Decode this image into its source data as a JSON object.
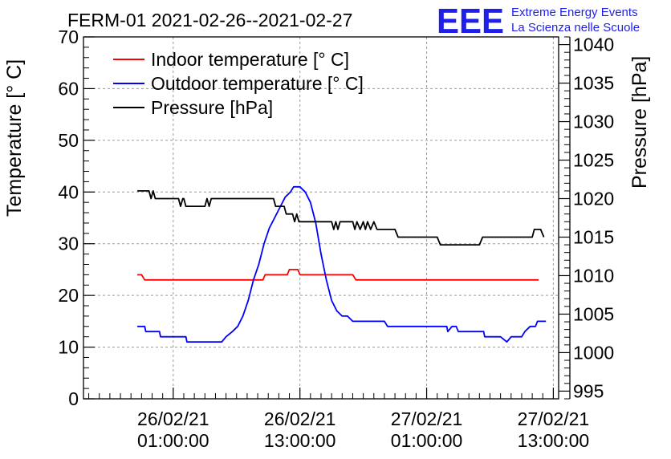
{
  "chart_data": {
    "type": "line",
    "title": "FERM-01 2021-02-26--2021-02-27",
    "ylabel": "Temperature [° C]",
    "ylabel_right": "Pressure [hPa]",
    "xlabel": "",
    "ylim": [
      0,
      70
    ],
    "ylim_right": [
      994,
      1041
    ],
    "xlim_hours": [
      -7.5,
      37.5
    ],
    "grid": true,
    "legend_position": "top-left",
    "logo": {
      "mark": "EEE",
      "line1": "Extreme Energy Events",
      "line2": "La Scienza nelle Scuole",
      "color": "#1f1fe8"
    },
    "x_ticks": [
      {
        "hour": 1,
        "date": "26/02/21",
        "time": "01:00:00"
      },
      {
        "hour": 13,
        "date": "26/02/21",
        "time": "13:00:00"
      },
      {
        "hour": 25,
        "date": "27/02/21",
        "time": "01:00:00"
      },
      {
        "hour": 37,
        "date": "27/02/21",
        "time": "13:00:00"
      }
    ],
    "y_ticks": [
      0,
      10,
      20,
      30,
      40,
      50,
      60,
      70
    ],
    "y_ticks_right": [
      995,
      1000,
      1005,
      1010,
      1015,
      1020,
      1025,
      1030,
      1035,
      1040
    ],
    "series": [
      {
        "name": "Indoor temperature [° C]",
        "axis": "left",
        "color": "#ff0000",
        "points": [
          [
            -2.4,
            24
          ],
          [
            -2,
            24
          ],
          [
            -1.7,
            23
          ],
          [
            0,
            23
          ],
          [
            2,
            23
          ],
          [
            4,
            23
          ],
          [
            6,
            23
          ],
          [
            8,
            23
          ],
          [
            9.5,
            23
          ],
          [
            9.7,
            24
          ],
          [
            11,
            24
          ],
          [
            11.8,
            24
          ],
          [
            12,
            25
          ],
          [
            12.8,
            25
          ],
          [
            13,
            24
          ],
          [
            14,
            24
          ],
          [
            16,
            24
          ],
          [
            17,
            24
          ],
          [
            18,
            24
          ],
          [
            18.3,
            23
          ],
          [
            20,
            23
          ],
          [
            24,
            23
          ],
          [
            28,
            23
          ],
          [
            32,
            23
          ],
          [
            34,
            23
          ],
          [
            35.6,
            23
          ]
        ]
      },
      {
        "name": "Outdoor temperature [° C]",
        "axis": "left",
        "color": "#0000ff",
        "points": [
          [
            -2.4,
            14
          ],
          [
            -1.7,
            14
          ],
          [
            -1.6,
            13
          ],
          [
            -0.3,
            13
          ],
          [
            -0.2,
            12
          ],
          [
            2.2,
            12
          ],
          [
            2.3,
            11
          ],
          [
            5,
            11
          ],
          [
            5.6,
            11
          ],
          [
            6,
            12
          ],
          [
            6.6,
            13
          ],
          [
            7.1,
            14
          ],
          [
            7.6,
            16
          ],
          [
            8.1,
            19
          ],
          [
            8.6,
            23
          ],
          [
            9.1,
            26
          ],
          [
            9.6,
            30
          ],
          [
            10.1,
            33
          ],
          [
            10.6,
            35
          ],
          [
            11.1,
            37
          ],
          [
            11.6,
            39
          ],
          [
            12.1,
            40
          ],
          [
            12.4,
            41
          ],
          [
            13,
            41
          ],
          [
            13.5,
            40
          ],
          [
            14,
            38
          ],
          [
            14.5,
            34
          ],
          [
            15,
            28
          ],
          [
            15.5,
            23
          ],
          [
            16,
            19
          ],
          [
            16.5,
            17
          ],
          [
            17,
            16
          ],
          [
            17.5,
            16
          ],
          [
            18,
            15
          ],
          [
            19,
            15
          ],
          [
            20,
            15
          ],
          [
            21,
            15
          ],
          [
            21.3,
            14
          ],
          [
            23,
            14
          ],
          [
            25,
            14
          ],
          [
            26.9,
            14
          ],
          [
            27,
            13
          ],
          [
            27.4,
            14
          ],
          [
            27.8,
            14
          ],
          [
            28,
            13
          ],
          [
            29,
            13
          ],
          [
            30.4,
            13
          ],
          [
            30.5,
            12
          ],
          [
            32,
            12
          ],
          [
            32.6,
            11
          ],
          [
            33,
            12
          ],
          [
            34,
            12
          ],
          [
            34.3,
            13
          ],
          [
            34.8,
            14
          ],
          [
            35.3,
            14
          ],
          [
            35.5,
            15
          ],
          [
            36.3,
            15
          ]
        ]
      },
      {
        "name": "Pressure [hPa]",
        "axis": "right",
        "color": "#000000",
        "points": [
          [
            -2.4,
            1021
          ],
          [
            -1.3,
            1021
          ],
          [
            -1.1,
            1020
          ],
          [
            -0.9,
            1021
          ],
          [
            -0.7,
            1020
          ],
          [
            0,
            1020
          ],
          [
            1,
            1020
          ],
          [
            1.5,
            1020
          ],
          [
            1.7,
            1019
          ],
          [
            1.9,
            1020
          ],
          [
            2,
            1020
          ],
          [
            2.2,
            1019
          ],
          [
            4,
            1019
          ],
          [
            4.2,
            1020
          ],
          [
            4.4,
            1019
          ],
          [
            4.6,
            1020
          ],
          [
            6,
            1020
          ],
          [
            8,
            1020
          ],
          [
            10.5,
            1020
          ],
          [
            10.7,
            1019
          ],
          [
            11.5,
            1019
          ],
          [
            11.7,
            1018
          ],
          [
            12.3,
            1018
          ],
          [
            12.5,
            1017
          ],
          [
            12.7,
            1018
          ],
          [
            12.9,
            1017
          ],
          [
            13.5,
            1017
          ],
          [
            16,
            1017
          ],
          [
            16.2,
            1016
          ],
          [
            16.4,
            1017
          ],
          [
            16.6,
            1016
          ],
          [
            16.8,
            1017
          ],
          [
            18,
            1017
          ],
          [
            18.2,
            1016
          ],
          [
            18.4,
            1017
          ],
          [
            18.7,
            1016
          ],
          [
            19,
            1017
          ],
          [
            19.2,
            1016
          ],
          [
            19.4,
            1017
          ],
          [
            19.7,
            1016
          ],
          [
            20,
            1017
          ],
          [
            20.3,
            1016
          ],
          [
            22,
            1016
          ],
          [
            22.3,
            1015
          ],
          [
            25,
            1015
          ],
          [
            26,
            1015
          ],
          [
            26.3,
            1014
          ],
          [
            29,
            1014
          ],
          [
            30,
            1014
          ],
          [
            30.3,
            1015
          ],
          [
            34,
            1015
          ],
          [
            35,
            1015
          ],
          [
            35.2,
            1016
          ],
          [
            35.8,
            1016
          ],
          [
            36.1,
            1015
          ]
        ]
      }
    ]
  }
}
